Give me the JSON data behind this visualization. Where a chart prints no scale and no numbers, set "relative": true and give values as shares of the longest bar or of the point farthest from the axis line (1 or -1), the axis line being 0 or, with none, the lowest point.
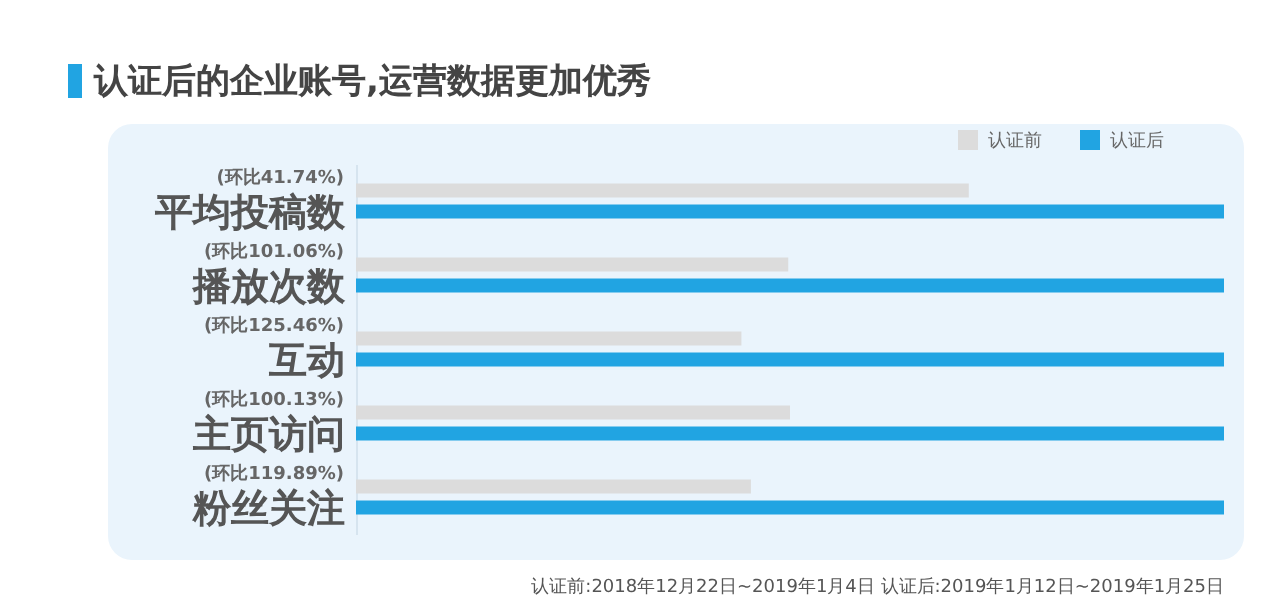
{
  "chart_data": {
    "type": "bar",
    "orientation": "horizontal",
    "relative": true,
    "title": "认证后的企业账号,运营数据更加优秀",
    "categories": [
      "平均投稿数",
      "播放次数",
      "互动",
      "主页访问",
      "粉丝关注"
    ],
    "series": [
      {
        "name": "认证前",
        "color": "#dcdcdc",
        "values": [
          0.706,
          0.498,
          0.444,
          0.5,
          0.455
        ]
      },
      {
        "name": "认证后",
        "color": "#21a4e2",
        "values": [
          1,
          1,
          1,
          1,
          1
        ]
      }
    ],
    "annotations": [
      "(环比41.74%)",
      "(环比101.06%)",
      "(环比125.46%)",
      "(环比100.13%)",
      "(环比119.89%)",
      "认证前:2018年12月22日~2019年1月4日    认证后:2019年1月12日~2019年1月25日"
    ],
    "legend": "top right"
  }
}
